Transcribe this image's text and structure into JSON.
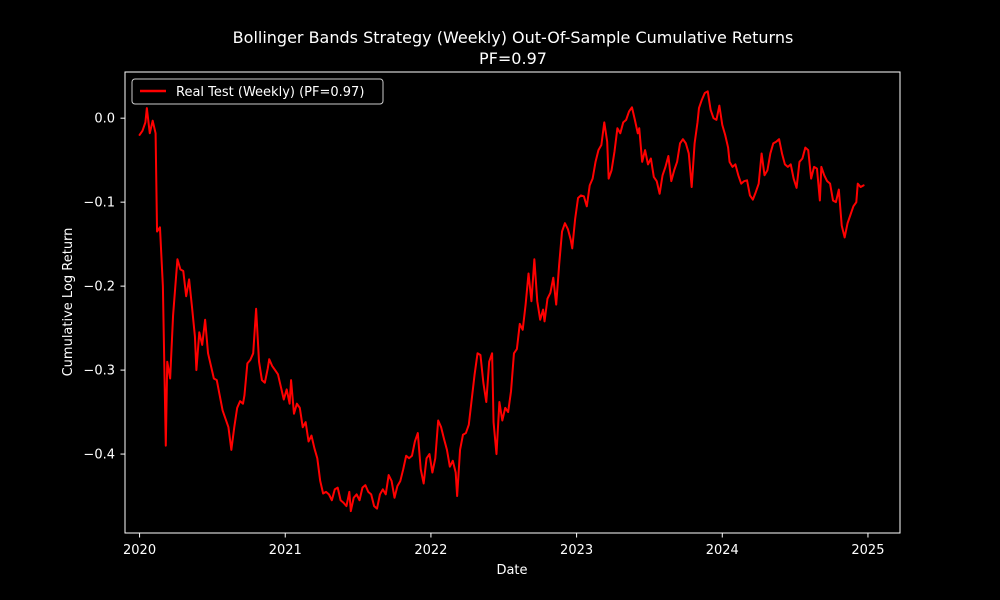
{
  "chart_data": {
    "type": "line",
    "title": "Bollinger Bands Strategy (Weekly) Out-Of-Sample Cumulative Returns",
    "subtitle": "PF=0.97",
    "xlabel": "Date",
    "ylabel": "Cumulative Log Return",
    "xlim": [
      2019.9,
      2025.22
    ],
    "ylim": [
      -0.494,
      0.055
    ],
    "x_ticks": [
      2020,
      2021,
      2022,
      2023,
      2024,
      2025
    ],
    "x_tick_labels": [
      "2020",
      "2021",
      "2022",
      "2023",
      "2024",
      "2025"
    ],
    "y_ticks": [
      0.0,
      -0.1,
      -0.2,
      -0.3,
      -0.4
    ],
    "y_tick_labels": [
      "0.0",
      "−0.1",
      "−0.2",
      "−0.3",
      "−0.4"
    ],
    "grid": false,
    "legend_position": "upper-left",
    "background_color": "#000000",
    "foreground_color": "#ffffff",
    "series": [
      {
        "name": "Real Test (Weekly) (PF=0.97)",
        "color": "#ff0000",
        "points": [
          [
            2020.0,
            -0.02
          ],
          [
            2020.02,
            -0.015
          ],
          [
            2020.04,
            -0.005
          ],
          [
            2020.05,
            0.012
          ],
          [
            2020.07,
            -0.018
          ],
          [
            2020.09,
            -0.003
          ],
          [
            2020.11,
            -0.018
          ],
          [
            2020.12,
            -0.135
          ],
          [
            2020.14,
            -0.13
          ],
          [
            2020.16,
            -0.2
          ],
          [
            2020.18,
            -0.39
          ],
          [
            2020.19,
            -0.29
          ],
          [
            2020.21,
            -0.31
          ],
          [
            2020.23,
            -0.235
          ],
          [
            2020.25,
            -0.19
          ],
          [
            2020.26,
            -0.168
          ],
          [
            2020.28,
            -0.18
          ],
          [
            2020.3,
            -0.182
          ],
          [
            2020.32,
            -0.212
          ],
          [
            2020.34,
            -0.192
          ],
          [
            2020.36,
            -0.225
          ],
          [
            2020.38,
            -0.26
          ],
          [
            2020.39,
            -0.3
          ],
          [
            2020.41,
            -0.255
          ],
          [
            2020.43,
            -0.27
          ],
          [
            2020.45,
            -0.24
          ],
          [
            2020.47,
            -0.28
          ],
          [
            2020.49,
            -0.295
          ],
          [
            2020.51,
            -0.31
          ],
          [
            2020.53,
            -0.312
          ],
          [
            2020.55,
            -0.33
          ],
          [
            2020.57,
            -0.348
          ],
          [
            2020.59,
            -0.358
          ],
          [
            2020.61,
            -0.368
          ],
          [
            2020.63,
            -0.395
          ],
          [
            2020.65,
            -0.368
          ],
          [
            2020.67,
            -0.345
          ],
          [
            2020.69,
            -0.337
          ],
          [
            2020.71,
            -0.34
          ],
          [
            2020.72,
            -0.33
          ],
          [
            2020.74,
            -0.292
          ],
          [
            2020.76,
            -0.288
          ],
          [
            2020.78,
            -0.28
          ],
          [
            2020.8,
            -0.227
          ],
          [
            2020.82,
            -0.29
          ],
          [
            2020.84,
            -0.312
          ],
          [
            2020.86,
            -0.315
          ],
          [
            2020.88,
            -0.298
          ],
          [
            2020.89,
            -0.287
          ],
          [
            2020.91,
            -0.295
          ],
          [
            2020.93,
            -0.3
          ],
          [
            2020.95,
            -0.305
          ],
          [
            2020.97,
            -0.32
          ],
          [
            2020.99,
            -0.335
          ],
          [
            2021.01,
            -0.323
          ],
          [
            2021.03,
            -0.34
          ],
          [
            2021.04,
            -0.312
          ],
          [
            2021.06,
            -0.352
          ],
          [
            2021.08,
            -0.34
          ],
          [
            2021.1,
            -0.345
          ],
          [
            2021.12,
            -0.368
          ],
          [
            2021.14,
            -0.362
          ],
          [
            2021.16,
            -0.385
          ],
          [
            2021.18,
            -0.378
          ],
          [
            2021.2,
            -0.393
          ],
          [
            2021.22,
            -0.405
          ],
          [
            2021.24,
            -0.432
          ],
          [
            2021.26,
            -0.447
          ],
          [
            2021.28,
            -0.445
          ],
          [
            2021.3,
            -0.448
          ],
          [
            2021.32,
            -0.455
          ],
          [
            2021.34,
            -0.442
          ],
          [
            2021.36,
            -0.44
          ],
          [
            2021.38,
            -0.455
          ],
          [
            2021.4,
            -0.458
          ],
          [
            2021.42,
            -0.462
          ],
          [
            2021.44,
            -0.445
          ],
          [
            2021.45,
            -0.468
          ],
          [
            2021.47,
            -0.452
          ],
          [
            2021.49,
            -0.448
          ],
          [
            2021.51,
            -0.455
          ],
          [
            2021.53,
            -0.44
          ],
          [
            2021.55,
            -0.437
          ],
          [
            2021.57,
            -0.445
          ],
          [
            2021.59,
            -0.448
          ],
          [
            2021.61,
            -0.462
          ],
          [
            2021.63,
            -0.465
          ],
          [
            2021.65,
            -0.448
          ],
          [
            2021.67,
            -0.442
          ],
          [
            2021.69,
            -0.448
          ],
          [
            2021.71,
            -0.425
          ],
          [
            2021.73,
            -0.432
          ],
          [
            2021.75,
            -0.452
          ],
          [
            2021.77,
            -0.438
          ],
          [
            2021.79,
            -0.432
          ],
          [
            2021.81,
            -0.418
          ],
          [
            2021.83,
            -0.402
          ],
          [
            2021.85,
            -0.405
          ],
          [
            2021.87,
            -0.402
          ],
          [
            2021.89,
            -0.385
          ],
          [
            2021.91,
            -0.375
          ],
          [
            2021.93,
            -0.418
          ],
          [
            2021.95,
            -0.435
          ],
          [
            2021.97,
            -0.405
          ],
          [
            2021.99,
            -0.4
          ],
          [
            2022.01,
            -0.422
          ],
          [
            2022.03,
            -0.405
          ],
          [
            2022.05,
            -0.36
          ],
          [
            2022.07,
            -0.368
          ],
          [
            2022.09,
            -0.382
          ],
          [
            2022.11,
            -0.395
          ],
          [
            2022.13,
            -0.415
          ],
          [
            2022.15,
            -0.408
          ],
          [
            2022.17,
            -0.422
          ],
          [
            2022.18,
            -0.45
          ],
          [
            2022.2,
            -0.395
          ],
          [
            2022.22,
            -0.377
          ],
          [
            2022.24,
            -0.375
          ],
          [
            2022.26,
            -0.365
          ],
          [
            2022.28,
            -0.335
          ],
          [
            2022.3,
            -0.305
          ],
          [
            2022.32,
            -0.28
          ],
          [
            2022.34,
            -0.282
          ],
          [
            2022.36,
            -0.315
          ],
          [
            2022.38,
            -0.338
          ],
          [
            2022.4,
            -0.29
          ],
          [
            2022.42,
            -0.28
          ],
          [
            2022.43,
            -0.362
          ],
          [
            2022.45,
            -0.4
          ],
          [
            2022.47,
            -0.338
          ],
          [
            2022.49,
            -0.36
          ],
          [
            2022.51,
            -0.345
          ],
          [
            2022.53,
            -0.35
          ],
          [
            2022.55,
            -0.325
          ],
          [
            2022.57,
            -0.28
          ],
          [
            2022.59,
            -0.275
          ],
          [
            2022.61,
            -0.245
          ],
          [
            2022.63,
            -0.252
          ],
          [
            2022.65,
            -0.222
          ],
          [
            2022.67,
            -0.185
          ],
          [
            2022.69,
            -0.218
          ],
          [
            2022.71,
            -0.168
          ],
          [
            2022.73,
            -0.218
          ],
          [
            2022.75,
            -0.24
          ],
          [
            2022.77,
            -0.228
          ],
          [
            2022.78,
            -0.242
          ],
          [
            2022.8,
            -0.215
          ],
          [
            2022.82,
            -0.208
          ],
          [
            2022.84,
            -0.19
          ],
          [
            2022.86,
            -0.222
          ],
          [
            2022.88,
            -0.175
          ],
          [
            2022.9,
            -0.135
          ],
          [
            2022.92,
            -0.125
          ],
          [
            2022.94,
            -0.132
          ],
          [
            2022.96,
            -0.145
          ],
          [
            2022.97,
            -0.155
          ],
          [
            2022.99,
            -0.12
          ],
          [
            2023.01,
            -0.095
          ],
          [
            2023.03,
            -0.092
          ],
          [
            2023.05,
            -0.093
          ],
          [
            2023.07,
            -0.105
          ],
          [
            2023.09,
            -0.08
          ],
          [
            2023.11,
            -0.072
          ],
          [
            2023.13,
            -0.052
          ],
          [
            2023.15,
            -0.038
          ],
          [
            2023.17,
            -0.032
          ],
          [
            2023.19,
            -0.005
          ],
          [
            2023.21,
            -0.028
          ],
          [
            2023.22,
            -0.072
          ],
          [
            2023.24,
            -0.062
          ],
          [
            2023.26,
            -0.04
          ],
          [
            2023.28,
            -0.012
          ],
          [
            2023.3,
            -0.018
          ],
          [
            2023.32,
            -0.005
          ],
          [
            2023.34,
            -0.002
          ],
          [
            2023.36,
            0.008
          ],
          [
            2023.38,
            0.013
          ],
          [
            2023.4,
            -0.002
          ],
          [
            2023.42,
            -0.018
          ],
          [
            2023.43,
            -0.012
          ],
          [
            2023.45,
            -0.052
          ],
          [
            2023.47,
            -0.038
          ],
          [
            2023.49,
            -0.055
          ],
          [
            2023.51,
            -0.048
          ],
          [
            2023.53,
            -0.07
          ],
          [
            2023.55,
            -0.075
          ],
          [
            2023.57,
            -0.09
          ],
          [
            2023.59,
            -0.068
          ],
          [
            2023.61,
            -0.058
          ],
          [
            2023.63,
            -0.045
          ],
          [
            2023.65,
            -0.075
          ],
          [
            2023.67,
            -0.062
          ],
          [
            2023.69,
            -0.052
          ],
          [
            2023.71,
            -0.03
          ],
          [
            2023.73,
            -0.025
          ],
          [
            2023.75,
            -0.03
          ],
          [
            2023.77,
            -0.042
          ],
          [
            2023.79,
            -0.082
          ],
          [
            2023.81,
            -0.03
          ],
          [
            2023.83,
            -0.005
          ],
          [
            2023.84,
            0.012
          ],
          [
            2023.86,
            0.022
          ],
          [
            2023.88,
            0.03
          ],
          [
            2023.9,
            0.032
          ],
          [
            2023.92,
            0.01
          ],
          [
            2023.94,
            0.0
          ],
          [
            2023.96,
            -0.002
          ],
          [
            2023.98,
            0.015
          ],
          [
            2024.0,
            -0.008
          ],
          [
            2024.02,
            -0.02
          ],
          [
            2024.04,
            -0.035
          ],
          [
            2024.05,
            -0.052
          ],
          [
            2024.07,
            -0.058
          ],
          [
            2024.09,
            -0.055
          ],
          [
            2024.11,
            -0.068
          ],
          [
            2024.13,
            -0.078
          ],
          [
            2024.15,
            -0.075
          ],
          [
            2024.17,
            -0.074
          ],
          [
            2024.19,
            -0.092
          ],
          [
            2024.21,
            -0.097
          ],
          [
            2024.23,
            -0.088
          ],
          [
            2024.25,
            -0.078
          ],
          [
            2024.27,
            -0.042
          ],
          [
            2024.29,
            -0.068
          ],
          [
            2024.31,
            -0.062
          ],
          [
            2024.33,
            -0.042
          ],
          [
            2024.35,
            -0.03
          ],
          [
            2024.37,
            -0.028
          ],
          [
            2024.39,
            -0.025
          ],
          [
            2024.41,
            -0.042
          ],
          [
            2024.43,
            -0.055
          ],
          [
            2024.45,
            -0.058
          ],
          [
            2024.47,
            -0.055
          ],
          [
            2024.49,
            -0.072
          ],
          [
            2024.51,
            -0.083
          ],
          [
            2024.53,
            -0.052
          ],
          [
            2024.55,
            -0.048
          ],
          [
            2024.57,
            -0.035
          ],
          [
            2024.59,
            -0.038
          ],
          [
            2024.61,
            -0.072
          ],
          [
            2024.63,
            -0.058
          ],
          [
            2024.65,
            -0.06
          ],
          [
            2024.67,
            -0.098
          ],
          [
            2024.68,
            -0.058
          ],
          [
            2024.7,
            -0.068
          ],
          [
            2024.72,
            -0.075
          ],
          [
            2024.74,
            -0.078
          ],
          [
            2024.76,
            -0.098
          ],
          [
            2024.78,
            -0.1
          ],
          [
            2024.8,
            -0.085
          ],
          [
            2024.82,
            -0.128
          ],
          [
            2024.84,
            -0.142
          ],
          [
            2024.86,
            -0.125
          ],
          [
            2024.88,
            -0.115
          ],
          [
            2024.9,
            -0.105
          ],
          [
            2024.92,
            -0.1
          ],
          [
            2024.93,
            -0.078
          ],
          [
            2024.95,
            -0.082
          ],
          [
            2024.97,
            -0.08
          ]
        ]
      }
    ]
  }
}
